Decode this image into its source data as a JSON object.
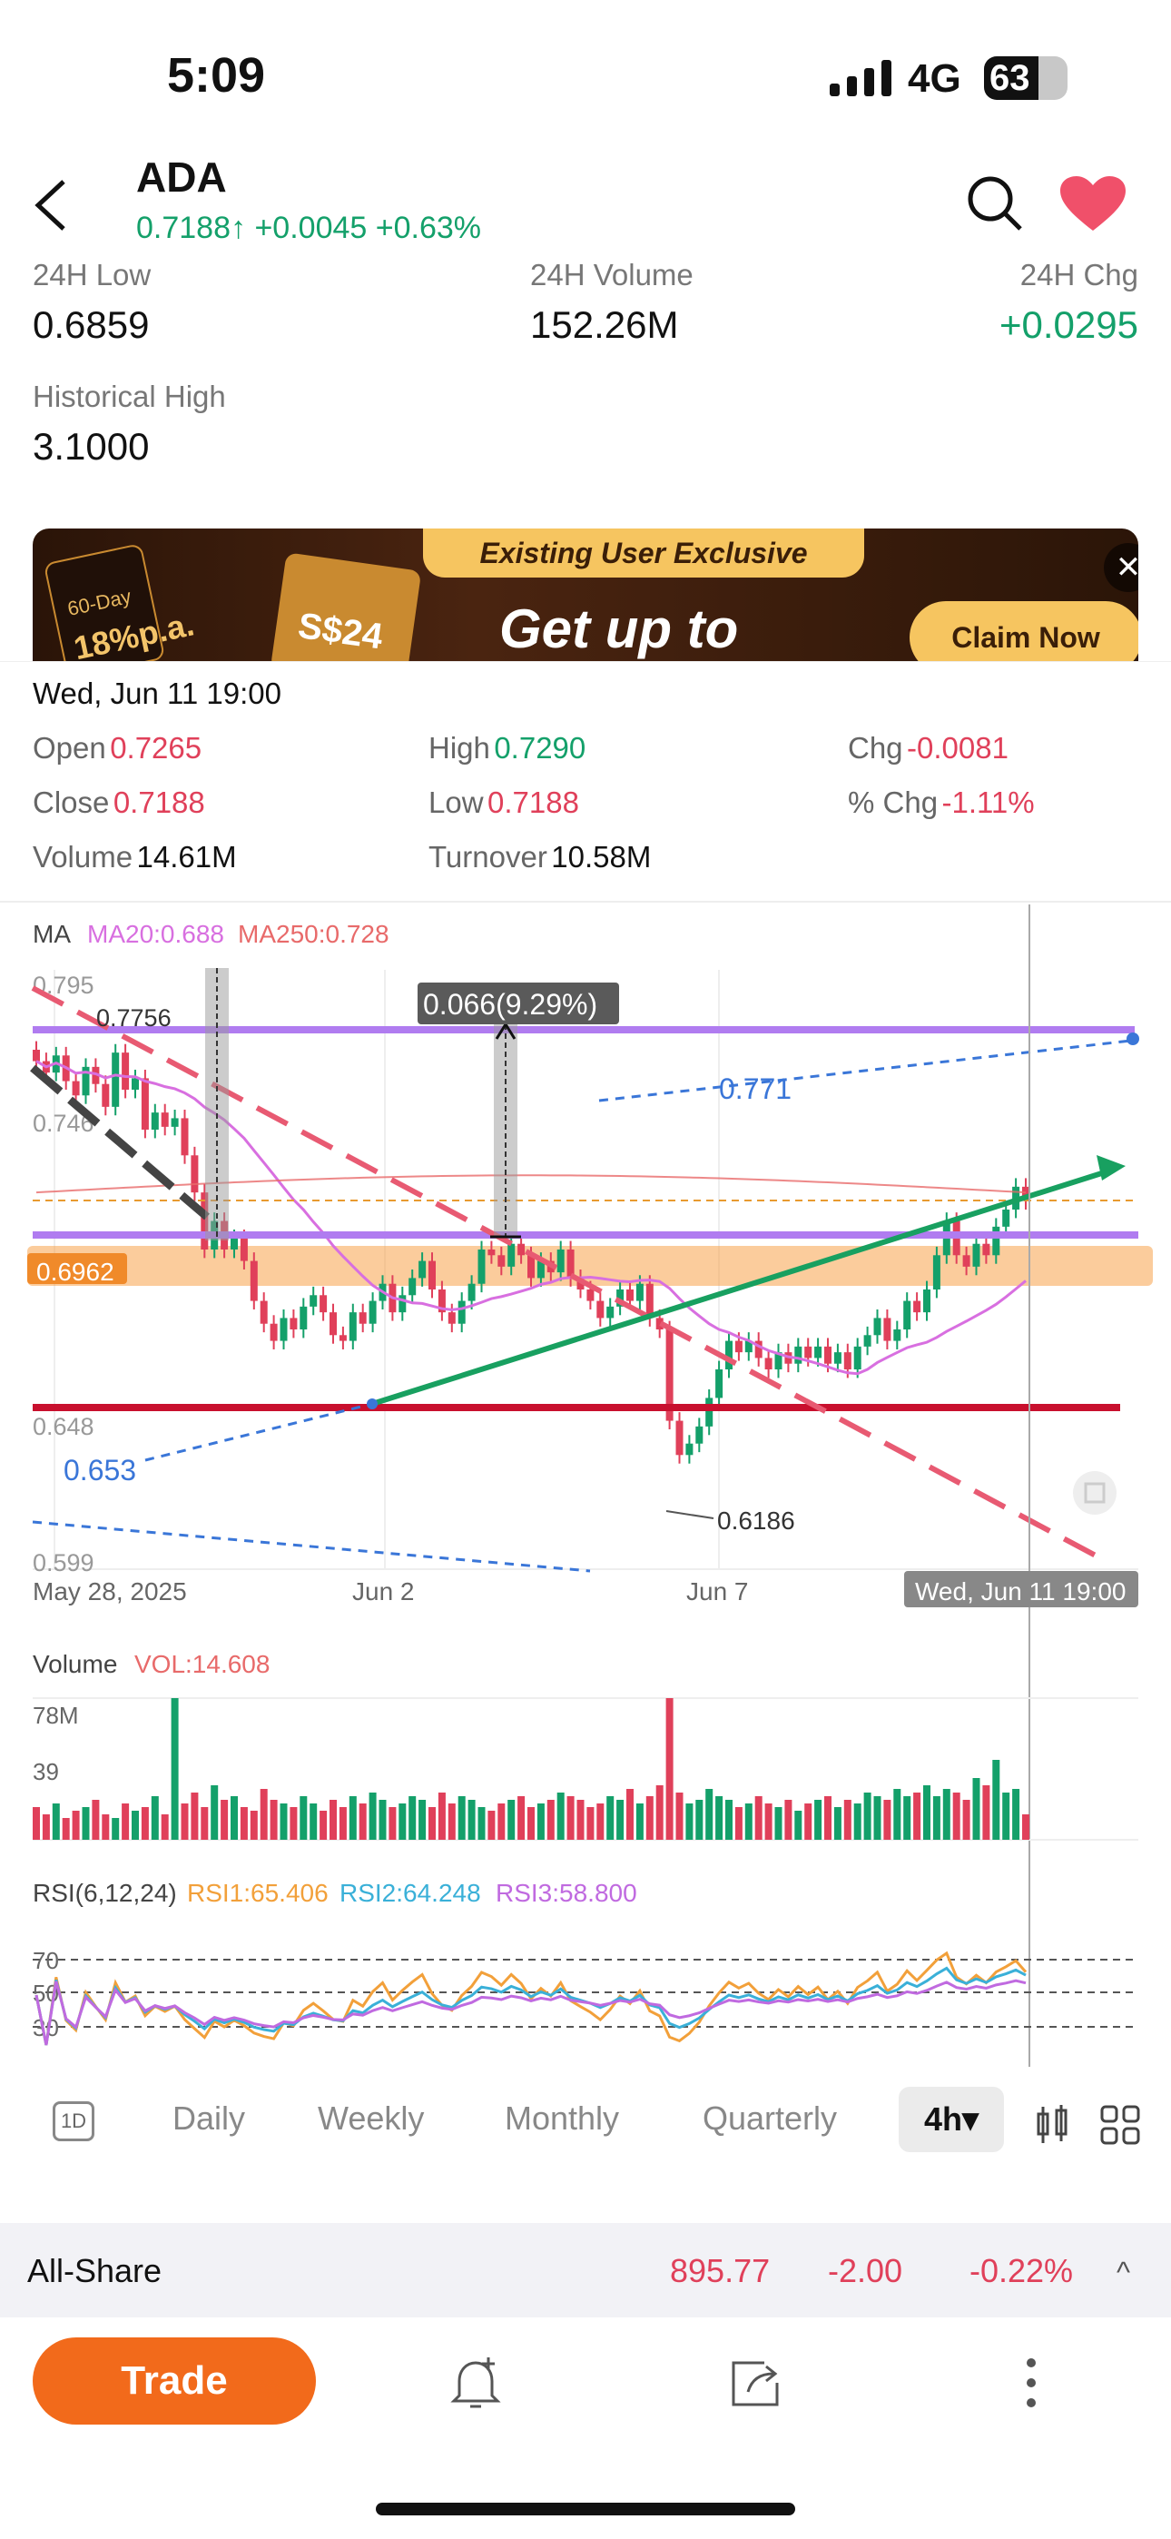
{
  "status": {
    "time": "5:09",
    "network": "4G",
    "battery": "63"
  },
  "header": {
    "symbol": "ADA",
    "price": "0.7188",
    "arrow": "↑",
    "change": "+0.0045",
    "change_pct": "+0.63%"
  },
  "stats": [
    {
      "label": "24H Low",
      "value": "0.6859"
    },
    {
      "label": "24H Volume",
      "value": "152.26M"
    },
    {
      "label": "24H Chg",
      "value": "+0.0295"
    },
    {
      "label": "Historical High",
      "value": "3.1000"
    }
  ],
  "banner": {
    "tag": "Existing User Exclusive",
    "title": "Get up to",
    "claim": "Claim Now",
    "card1_top": "60-Day",
    "card1": "18%p.a.",
    "card2": "S$24",
    "close": "✕"
  },
  "ohlc": {
    "datetime": "Wed, Jun 11 19:00",
    "open_label": "Open",
    "open": "0.7265",
    "high_label": "High",
    "high": "0.7290",
    "chg_label": "Chg",
    "chg": "-0.0081",
    "close_label": "Close",
    "close": "0.7188",
    "low_label": "Low",
    "low": "0.7188",
    "pchg_label": "% Chg",
    "pchg": "-1.11%",
    "volume_label": "Volume",
    "volume": "14.61M",
    "turnover_label": "Turnover",
    "turnover": "10.58M"
  },
  "chart_data": {
    "type": "candlestick",
    "ma_legend": {
      "label": "MA",
      "ma20": "MA20:0.688",
      "ma250": "MA250:0.728"
    },
    "y_ticks": [
      "0.795",
      "0.746",
      "0.648",
      "0.599"
    ],
    "x_ticks": [
      "May 28, 2025",
      "Jun 2",
      "Jun 7"
    ],
    "cursor_label": "Wed, Jun 11 19:00",
    "annotations": {
      "range": "0.066(9.29%)",
      "high_label": "0.7756",
      "level_771": "0.771",
      "level_6962": "0.6962",
      "level_653": "0.653",
      "low_label": "0.6186"
    },
    "ylim": [
      0.59,
      0.8
    ],
    "closes": [
      0.768,
      0.764,
      0.77,
      0.761,
      0.756,
      0.766,
      0.76,
      0.752,
      0.771,
      0.758,
      0.762,
      0.744,
      0.75,
      0.745,
      0.748,
      0.735,
      0.722,
      0.702,
      0.712,
      0.702,
      0.706,
      0.698,
      0.684,
      0.676,
      0.67,
      0.678,
      0.674,
      0.682,
      0.686,
      0.68,
      0.672,
      0.67,
      0.68,
      0.676,
      0.684,
      0.69,
      0.68,
      0.686,
      0.692,
      0.698,
      0.688,
      0.68,
      0.676,
      0.684,
      0.69,
      0.702,
      0.7,
      0.696,
      0.704,
      0.7,
      0.692,
      0.698,
      0.694,
      0.702,
      0.692,
      0.688,
      0.684,
      0.678,
      0.682,
      0.688,
      0.684,
      0.69,
      0.678,
      0.674,
      0.642,
      0.63,
      0.634,
      0.64,
      0.65,
      0.66,
      0.67,
      0.666,
      0.67,
      0.664,
      0.66,
      0.666,
      0.662,
      0.668,
      0.664,
      0.668,
      0.662,
      0.666,
      0.66,
      0.668,
      0.672,
      0.678,
      0.67,
      0.674,
      0.684,
      0.68,
      0.688,
      0.7,
      0.712,
      0.7,
      0.696,
      0.704,
      0.7,
      0.71,
      0.716,
      0.724,
      0.719
    ],
    "volume": {
      "label": "Volume",
      "vol": "VOL:14.608",
      "ticks": [
        "78M",
        "39"
      ],
      "max": 78,
      "values": [
        18,
        14,
        20,
        12,
        16,
        18,
        22,
        14,
        12,
        20,
        16,
        18,
        24,
        14,
        78,
        20,
        26,
        18,
        30,
        22,
        24,
        18,
        16,
        28,
        22,
        20,
        18,
        24,
        20,
        16,
        22,
        18,
        24,
        20,
        26,
        22,
        18,
        20,
        24,
        22,
        18,
        26,
        20,
        24,
        22,
        18,
        16,
        20,
        22,
        24,
        18,
        20,
        22,
        26,
        24,
        22,
        18,
        20,
        24,
        22,
        28,
        20,
        24,
        30,
        78,
        26,
        20,
        22,
        28,
        24,
        22,
        18,
        20,
        24,
        20,
        18,
        22,
        16,
        20,
        22,
        24,
        18,
        22,
        20,
        26,
        24,
        22,
        28,
        24,
        26,
        30,
        24,
        28,
        26,
        22,
        34,
        30,
        44,
        26,
        28,
        14
      ]
    },
    "rsi": {
      "label": "RSI(6,12,24)",
      "rsi1": "RSI1:65.406",
      "rsi2": "RSI2:64.248",
      "rsi3": "RSI3:58.800",
      "ticks": [
        "70",
        "50",
        "30"
      ]
    }
  },
  "tabs": [
    "1D",
    "Daily",
    "Weekly",
    "Monthly",
    "Quarterly",
    "4h▾"
  ],
  "share": {
    "name": "All-Share",
    "value": "895.77",
    "change": "-2.00",
    "pct": "-0.22%",
    "caret": "^"
  },
  "actions": {
    "trade": "Trade",
    "alert_icon": "bell-plus-icon",
    "share_icon": "share-icon",
    "more_icon": "more-icon"
  },
  "colors": {
    "up": "#14a06a",
    "down": "#e0405a",
    "ma20": "#d86fe0",
    "ma250": "#e86a6a",
    "rsi1": "#f2a03a",
    "rsi2": "#3ab0d8",
    "rsi3": "#c06ae0",
    "accent": "#f26a1b"
  }
}
